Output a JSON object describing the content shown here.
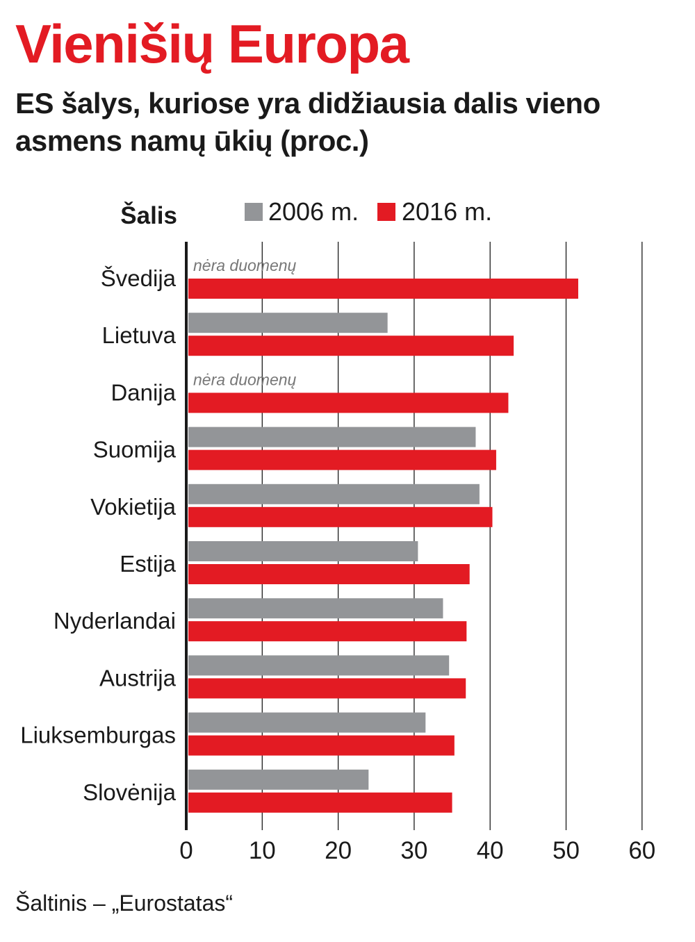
{
  "title": "Vienišių Europa",
  "subtitle": "ES šalys, kuriose yra didžiausia dalis vieno asmens namų ūkių (proc.)",
  "source": "Šaltinis – „Eurostatas“",
  "colors": {
    "accent": "#e31b23",
    "series_2006": "#939598",
    "series_2016": "#e31b23",
    "text": "#1a1a1a"
  },
  "chart_data": {
    "type": "bar",
    "orientation": "horizontal",
    "category_header": "Šalis",
    "categories": [
      "Švedija",
      "Lietuva",
      "Danija",
      "Suomija",
      "Vokietija",
      "Estija",
      "Nyderlandai",
      "Austrija",
      "Liuksemburgas",
      "Slovėnija"
    ],
    "series": [
      {
        "name": "2006 m.",
        "values": [
          null,
          26.5,
          null,
          38.1,
          38.6,
          30.5,
          33.8,
          34.6,
          31.5,
          24.0
        ]
      },
      {
        "name": "2016 m.",
        "values": [
          51.6,
          43.1,
          42.4,
          40.8,
          40.3,
          37.3,
          36.9,
          36.8,
          35.3,
          35.0
        ]
      }
    ],
    "missing_label": "nėra duomenų",
    "xlim": [
      0,
      60
    ],
    "xticks": [
      0,
      10,
      20,
      30,
      40,
      50,
      60
    ],
    "grid": true,
    "legend_position": "top"
  }
}
